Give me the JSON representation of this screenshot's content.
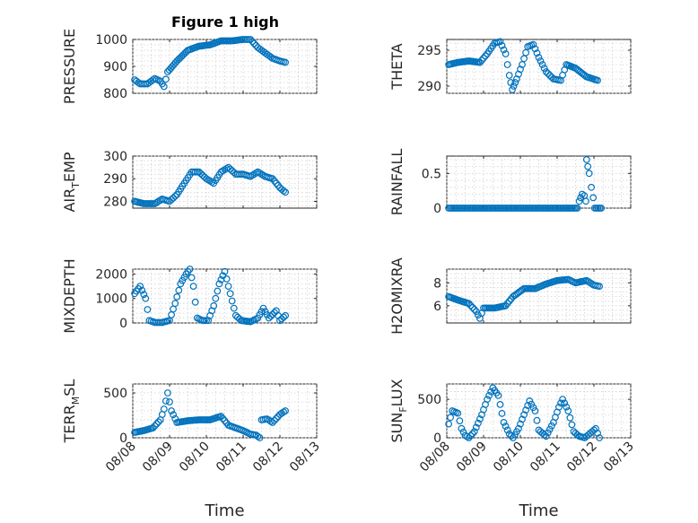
{
  "figure": {
    "title": "Figure 1 high",
    "x_tick_labels": [
      "08/08",
      "08/09",
      "08/10",
      "08/11",
      "08/12",
      "08/13"
    ],
    "x_label": "Time",
    "marker_color": "#0072bd"
  },
  "chart_data": [
    {
      "type": "scatter",
      "ylabel": "PRESSURE",
      "xlim": [
        0,
        5
      ],
      "ylim": [
        800,
        1000
      ],
      "yticks": [
        800,
        900,
        1000
      ],
      "ytick_labels": [
        "800",
        "900",
        "1000"
      ],
      "anchors": [
        [
          0.05,
          850
        ],
        [
          0.2,
          835
        ],
        [
          0.4,
          835
        ],
        [
          0.6,
          855
        ],
        [
          0.75,
          845
        ],
        [
          0.85,
          825
        ],
        [
          0.95,
          880
        ],
        [
          1.2,
          920
        ],
        [
          1.5,
          960
        ],
        [
          1.8,
          975
        ],
        [
          2.1,
          980
        ],
        [
          2.4,
          995
        ],
        [
          2.7,
          995
        ],
        [
          3.0,
          1000
        ],
        [
          3.2,
          1000
        ],
        [
          3.4,
          970
        ],
        [
          3.6,
          950
        ],
        [
          3.8,
          930
        ],
        [
          4.0,
          920
        ],
        [
          4.15,
          915
        ]
      ]
    },
    {
      "type": "scatter",
      "ylabel": "THETA",
      "xlim": [
        0,
        5
      ],
      "ylim": [
        289,
        296.5
      ],
      "yticks": [
        290,
        295
      ],
      "ytick_labels": [
        "290",
        "295"
      ],
      "anchors": [
        [
          0.05,
          293
        ],
        [
          0.3,
          293.3
        ],
        [
          0.6,
          293.5
        ],
        [
          0.9,
          293.3
        ],
        [
          1.1,
          294.5
        ],
        [
          1.3,
          296
        ],
        [
          1.45,
          296.2
        ],
        [
          1.6,
          294.5
        ],
        [
          1.7,
          291.5
        ],
        [
          1.78,
          289.5
        ],
        [
          1.9,
          291
        ],
        [
          2.05,
          293
        ],
        [
          2.2,
          295.5
        ],
        [
          2.35,
          295.8
        ],
        [
          2.5,
          294
        ],
        [
          2.7,
          292
        ],
        [
          2.9,
          291
        ],
        [
          3.1,
          290.8
        ],
        [
          3.25,
          293
        ],
        [
          3.5,
          292.5
        ],
        [
          3.8,
          291.3
        ],
        [
          4.1,
          290.8
        ]
      ]
    },
    {
      "type": "scatter",
      "ylabel": "AIR_TEMP",
      "ylabel_main": "AIR",
      "ylabel_sub": "T",
      "ylabel_tail": "EMP",
      "xlim": [
        0,
        5
      ],
      "ylim": [
        277,
        300
      ],
      "yticks": [
        280,
        290,
        300
      ],
      "ytick_labels": [
        "280",
        "290",
        "300"
      ],
      "anchors": [
        [
          0.05,
          280
        ],
        [
          0.3,
          279
        ],
        [
          0.6,
          279
        ],
        [
          0.8,
          281
        ],
        [
          1.0,
          280
        ],
        [
          1.2,
          283
        ],
        [
          1.4,
          288
        ],
        [
          1.6,
          293
        ],
        [
          1.8,
          293
        ],
        [
          2.0,
          290
        ],
        [
          2.2,
          288
        ],
        [
          2.4,
          293
        ],
        [
          2.6,
          295
        ],
        [
          2.8,
          292
        ],
        [
          3.0,
          292
        ],
        [
          3.2,
          291
        ],
        [
          3.4,
          293
        ],
        [
          3.6,
          291
        ],
        [
          3.8,
          290
        ],
        [
          4.0,
          286
        ],
        [
          4.15,
          284
        ]
      ]
    },
    {
      "type": "scatter",
      "ylabel": "RAINFALL",
      "xlim": [
        0,
        5
      ],
      "ylim": [
        0,
        0.75
      ],
      "yticks": [
        0,
        0.5
      ],
      "ytick_labels": [
        "0",
        "0.5"
      ],
      "anchors": [
        [
          0.05,
          0
        ],
        [
          3.55,
          0
        ],
        [
          3.6,
          0.1
        ],
        [
          3.68,
          0.2
        ],
        [
          3.74,
          0.18
        ],
        [
          3.78,
          0.1
        ],
        [
          3.8,
          0.7
        ],
        [
          3.87,
          0.5
        ],
        [
          3.93,
          0.3
        ],
        [
          3.98,
          0.15
        ],
        [
          4.02,
          0
        ],
        [
          4.2,
          0
        ]
      ]
    },
    {
      "type": "scatter",
      "ylabel": "MIXDEPTH",
      "xlim": [
        0,
        5
      ],
      "ylim": [
        0,
        2200
      ],
      "yticks": [
        0,
        1000,
        2000
      ],
      "ytick_labels": [
        "0",
        "1000",
        "2000"
      ],
      "anchors": [
        [
          0.05,
          1200
        ],
        [
          0.2,
          1500
        ],
        [
          0.35,
          1000
        ],
        [
          0.45,
          100
        ],
        [
          0.6,
          20
        ],
        [
          0.8,
          20
        ],
        [
          1.0,
          100
        ],
        [
          1.15,
          800
        ],
        [
          1.3,
          1600
        ],
        [
          1.45,
          2000
        ],
        [
          1.55,
          2200
        ],
        [
          1.65,
          1500
        ],
        [
          1.75,
          200
        ],
        [
          1.9,
          100
        ],
        [
          2.05,
          100
        ],
        [
          2.2,
          700
        ],
        [
          2.35,
          1600
        ],
        [
          2.5,
          2100
        ],
        [
          2.65,
          1200
        ],
        [
          2.8,
          300
        ],
        [
          2.95,
          100
        ],
        [
          3.2,
          50
        ],
        [
          3.4,
          200
        ],
        [
          3.55,
          600
        ],
        [
          3.7,
          200
        ],
        [
          3.9,
          500
        ],
        [
          4.0,
          100
        ],
        [
          4.15,
          300
        ]
      ]
    },
    {
      "type": "scatter",
      "ylabel": "H2OMIXRA",
      "xlim": [
        0,
        5
      ],
      "ylim": [
        4.5,
        9.2
      ],
      "yticks": [
        6,
        8
      ],
      "ytick_labels": [
        "6",
        "8"
      ],
      "anchors": [
        [
          0.05,
          6.8
        ],
        [
          0.3,
          6.5
        ],
        [
          0.6,
          6.2
        ],
        [
          0.8,
          5.5
        ],
        [
          0.9,
          4.9
        ],
        [
          1.0,
          5.8
        ],
        [
          1.3,
          5.8
        ],
        [
          1.6,
          6.0
        ],
        [
          1.8,
          6.8
        ],
        [
          2.1,
          7.5
        ],
        [
          2.4,
          7.5
        ],
        [
          2.7,
          7.9
        ],
        [
          3.0,
          8.2
        ],
        [
          3.3,
          8.3
        ],
        [
          3.5,
          8.0
        ],
        [
          3.8,
          8.2
        ],
        [
          4.0,
          7.8
        ],
        [
          4.15,
          7.7
        ]
      ]
    },
    {
      "type": "scatter",
      "ylabel": "TERR_MSL",
      "ylabel_main": "TERR",
      "ylabel_sub": "M",
      "ylabel_tail": "SL",
      "xlim": [
        0,
        5
      ],
      "ylim": [
        0,
        600
      ],
      "yticks": [
        0,
        500
      ],
      "ytick_labels": [
        "0",
        "500"
      ],
      "anchors": [
        [
          0.05,
          60
        ],
        [
          0.3,
          80
        ],
        [
          0.55,
          110
        ],
        [
          0.75,
          200
        ],
        [
          0.85,
          320
        ],
        [
          0.95,
          500
        ],
        [
          1.05,
          300
        ],
        [
          1.2,
          170
        ],
        [
          1.5,
          190
        ],
        [
          1.8,
          200
        ],
        [
          2.1,
          200
        ],
        [
          2.4,
          240
        ],
        [
          2.6,
          140
        ],
        [
          2.8,
          110
        ],
        [
          3.0,
          80
        ],
        [
          3.2,
          40
        ],
        [
          3.35,
          30
        ],
        [
          3.45,
          0
        ],
        [
          3.5,
          200
        ],
        [
          3.65,
          210
        ],
        [
          3.8,
          170
        ],
        [
          4.0,
          260
        ],
        [
          4.15,
          300
        ]
      ]
    },
    {
      "type": "scatter",
      "ylabel": "SUN_FLUX",
      "ylabel_main": "SUN",
      "ylabel_sub": "F",
      "ylabel_tail": "LUX",
      "xlim": [
        0,
        5
      ],
      "ylim": [
        0,
        700
      ],
      "yticks": [
        0,
        500
      ],
      "ytick_labels": [
        "0",
        "500"
      ],
      "anchors": [
        [
          0.05,
          180
        ],
        [
          0.15,
          350
        ],
        [
          0.3,
          320
        ],
        [
          0.4,
          120
        ],
        [
          0.5,
          30
        ],
        [
          0.6,
          0
        ],
        [
          0.75,
          80
        ],
        [
          0.95,
          300
        ],
        [
          1.1,
          500
        ],
        [
          1.25,
          650
        ],
        [
          1.4,
          550
        ],
        [
          1.55,
          200
        ],
        [
          1.7,
          50
        ],
        [
          1.8,
          0
        ],
        [
          1.95,
          120
        ],
        [
          2.1,
          300
        ],
        [
          2.25,
          480
        ],
        [
          2.4,
          350
        ],
        [
          2.5,
          100
        ],
        [
          2.7,
          20
        ],
        [
          2.9,
          200
        ],
        [
          3.05,
          400
        ],
        [
          3.15,
          500
        ],
        [
          3.3,
          350
        ],
        [
          3.45,
          80
        ],
        [
          3.6,
          20
        ],
        [
          3.75,
          0
        ],
        [
          3.9,
          60
        ],
        [
          4.05,
          120
        ],
        [
          4.15,
          0
        ]
      ]
    }
  ]
}
